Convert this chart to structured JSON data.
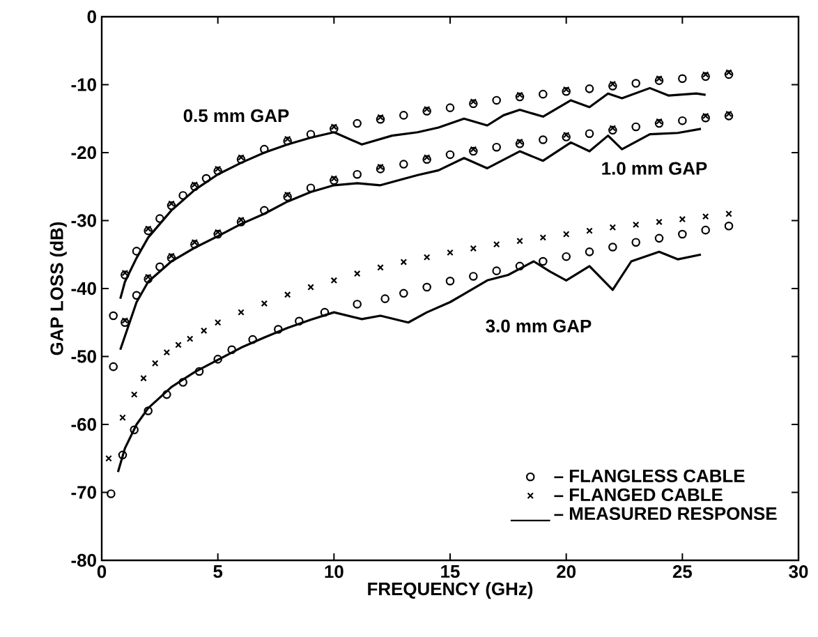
{
  "chart_data": {
    "type": "line",
    "xlabel": "FREQUENCY (GHz)",
    "ylabel": "GAP LOSS (dB)",
    "xlim": [
      0,
      30
    ],
    "ylim": [
      -80,
      0
    ],
    "xticks": [
      0,
      5,
      10,
      15,
      20,
      25,
      30
    ],
    "yticks": [
      -80,
      -70,
      -60,
      -50,
      -40,
      -30,
      -20,
      -10,
      0
    ],
    "legend": "bottom right",
    "annotations": [
      "0.5 mm GAP",
      "1.0 mm GAP",
      "3.0 mm GAP"
    ],
    "series": [
      {
        "name": "– FLANGLESS CABLE",
        "type": "scatter",
        "marker": "circle",
        "color": "#000000",
        "x": [
          0.5,
          1,
          1.5,
          2,
          2.5,
          3,
          3.5,
          4,
          4.5,
          5,
          6,
          7,
          8,
          9,
          10,
          11,
          12,
          13,
          14,
          15,
          16,
          17,
          18,
          19,
          20,
          21,
          22,
          23,
          24,
          25,
          26,
          27
        ],
        "values": [
          -44,
          -38,
          -34.5,
          -31.5,
          -29.7,
          -27.8,
          -26.3,
          -25,
          -23.8,
          -22.7,
          -21,
          -19.5,
          -18.3,
          -17.3,
          -16.5,
          -15.7,
          -15.1,
          -14.5,
          -13.9,
          -13.4,
          -12.8,
          -12.3,
          -11.8,
          -11.4,
          -11,
          -10.6,
          -10.2,
          -9.8,
          -9.4,
          -9.1,
          -8.8,
          -8.5
        ]
      },
      {
        "name": "– FLANGED CABLE",
        "type": "scatter",
        "marker": "cross",
        "color": "#000000",
        "x": [
          1,
          2,
          3,
          4,
          5,
          6,
          8,
          10,
          12,
          14,
          16,
          18,
          20,
          22,
          24,
          26,
          27
        ],
        "values": [
          -37.7,
          -31.2,
          -27.5,
          -24.7,
          -22.4,
          -20.7,
          -18,
          -16.2,
          -14.8,
          -13.6,
          -12.5,
          -11.5,
          -10.7,
          -9.9,
          -9.1,
          -8.5,
          -8.2
        ]
      },
      {
        "name": "– MEASURED RESPONSE",
        "line_style": "solid",
        "color": "#000000",
        "x": [
          0.8,
          1,
          1.5,
          2,
          3,
          4,
          5,
          6,
          7,
          8,
          9,
          10,
          11.2,
          12.5,
          13.6,
          14.5,
          15.6,
          16.6,
          17.3,
          18,
          19,
          20.2,
          21,
          21.8,
          22.4,
          23.6,
          24.4,
          25.6,
          26
        ],
        "values": [
          -41.5,
          -39,
          -35.5,
          -32.5,
          -28.5,
          -25.5,
          -23.2,
          -21.5,
          -20,
          -18.8,
          -17.8,
          -17,
          -18.8,
          -17.5,
          -17,
          -16.3,
          -15,
          -16,
          -14.5,
          -13.7,
          -14.7,
          -12.3,
          -13.3,
          -11.3,
          -12,
          -10.5,
          -11.6,
          -11.3,
          -11.5
        ]
      },
      {
        "type": "scatter",
        "marker": "circle",
        "color": "#000000",
        "x": [
          0.5,
          1,
          1.5,
          2,
          2.5,
          3,
          4,
          5,
          6,
          7,
          8,
          9,
          10,
          11,
          12,
          13,
          14,
          15,
          16,
          17,
          18,
          19,
          20,
          21,
          22,
          23,
          24,
          25,
          26,
          27
        ],
        "values": [
          -51.5,
          -45,
          -41,
          -38.6,
          -36.8,
          -35.5,
          -33.5,
          -32,
          -30.2,
          -28.5,
          -26.5,
          -25.2,
          -24.1,
          -23.2,
          -22.4,
          -21.7,
          -21,
          -20.3,
          -19.8,
          -19.2,
          -18.7,
          -18.1,
          -17.7,
          -17.2,
          -16.7,
          -16.2,
          -15.7,
          -15.3,
          -14.9,
          -14.6
        ]
      },
      {
        "type": "scatter",
        "marker": "cross",
        "color": "#000000",
        "x": [
          1,
          2,
          3,
          4,
          5,
          6,
          8,
          10,
          12,
          14,
          16,
          18,
          20,
          22,
          24,
          26,
          27
        ],
        "values": [
          -44.7,
          -38.3,
          -35.2,
          -33.2,
          -31.7,
          -29.9,
          -26.2,
          -23.8,
          -22.1,
          -20.7,
          -19.5,
          -18.4,
          -17.4,
          -16.4,
          -15.4,
          -14.6,
          -14.3
        ]
      },
      {
        "line_style": "solid",
        "color": "#000000",
        "x": [
          0.8,
          1,
          1.5,
          2,
          3,
          4,
          5,
          6,
          7,
          8,
          9,
          10,
          11,
          12,
          13.6,
          14.5,
          15.6,
          16.6,
          18,
          19,
          20.2,
          21,
          21.8,
          22.4,
          23.6,
          24.8,
          25.8
        ],
        "values": [
          -49,
          -47,
          -42,
          -39,
          -36,
          -34,
          -32.3,
          -30.5,
          -29,
          -27.2,
          -25.8,
          -24.8,
          -24.5,
          -24.8,
          -23.3,
          -22.6,
          -20.8,
          -22.3,
          -19.8,
          -21.2,
          -18.5,
          -19.8,
          -17.5,
          -19.5,
          -17.3,
          -17.1,
          -16.5
        ]
      },
      {
        "type": "scatter",
        "marker": "cross",
        "color": "#000000",
        "x": [
          0.3,
          0.9,
          1.4,
          1.8,
          2.3,
          2.8,
          3.3,
          3.8,
          4.4,
          5,
          6,
          7,
          8,
          9,
          10,
          11,
          12,
          13,
          14,
          15,
          16,
          17,
          18,
          19,
          20,
          21,
          22,
          23,
          24,
          25,
          26,
          27
        ],
        "values": [
          -65,
          -59,
          -55.6,
          -53.2,
          -51,
          -49.4,
          -48.3,
          -47.4,
          -46.2,
          -45,
          -43.5,
          -42.2,
          -40.9,
          -39.8,
          -38.8,
          -37.8,
          -36.9,
          -36.1,
          -35.4,
          -34.7,
          -34.1,
          -33.5,
          -33,
          -32.5,
          -32,
          -31.5,
          -31,
          -30.6,
          -30.2,
          -29.8,
          -29.4,
          -29
        ]
      },
      {
        "type": "scatter",
        "marker": "circle",
        "color": "#000000",
        "x": [
          0.4,
          0.9,
          1.4,
          2,
          2.8,
          3.5,
          4.2,
          5,
          5.6,
          6.5,
          7.6,
          8.5,
          9.6,
          11,
          12.2,
          13,
          14,
          15,
          16,
          17,
          18,
          19,
          20,
          21,
          22,
          23,
          24,
          25,
          26,
          27
        ],
        "values": [
          -70.2,
          -64.5,
          -60.8,
          -58,
          -55.6,
          -53.8,
          -52.2,
          -50.4,
          -49,
          -47.5,
          -46,
          -44.8,
          -43.5,
          -42.3,
          -41.5,
          -40.7,
          -39.8,
          -38.9,
          -38.2,
          -37.4,
          -36.7,
          -36,
          -35.3,
          -34.6,
          -33.9,
          -33.2,
          -32.6,
          -32,
          -31.4,
          -30.8
        ]
      },
      {
        "line_style": "solid",
        "color": "#000000",
        "x": [
          0.7,
          1,
          1.5,
          2,
          3,
          4,
          5,
          6,
          7,
          8,
          9,
          10,
          11.2,
          12,
          13.2,
          14,
          15,
          15.6,
          16.6,
          17.5,
          18.6,
          19.3,
          20,
          21,
          22,
          22.8,
          24,
          24.8,
          25.8
        ],
        "values": [
          -67,
          -63.5,
          -60,
          -57.6,
          -54.5,
          -52.3,
          -50.5,
          -48.7,
          -47.2,
          -45.8,
          -44.6,
          -43.5,
          -44.5,
          -44,
          -45,
          -43.5,
          -42,
          -40.8,
          -38.8,
          -38,
          -36,
          -37.5,
          -38.8,
          -36.7,
          -40.2,
          -36,
          -34.6,
          -35.7,
          -35
        ]
      }
    ]
  }
}
